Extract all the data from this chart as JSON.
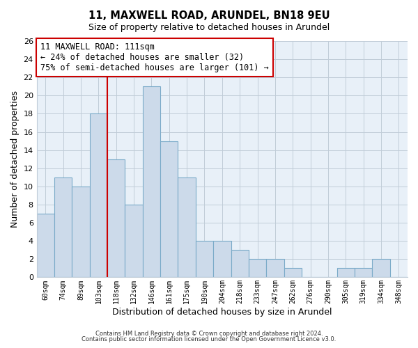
{
  "title": "11, MAXWELL ROAD, ARUNDEL, BN18 9EU",
  "subtitle": "Size of property relative to detached houses in Arundel",
  "xlabel": "Distribution of detached houses by size in Arundel",
  "ylabel": "Number of detached properties",
  "bar_labels": [
    "60sqm",
    "74sqm",
    "89sqm",
    "103sqm",
    "118sqm",
    "132sqm",
    "146sqm",
    "161sqm",
    "175sqm",
    "190sqm",
    "204sqm",
    "218sqm",
    "233sqm",
    "247sqm",
    "262sqm",
    "276sqm",
    "290sqm",
    "305sqm",
    "319sqm",
    "334sqm",
    "348sqm"
  ],
  "bar_values": [
    7,
    11,
    10,
    18,
    13,
    8,
    21,
    15,
    11,
    4,
    4,
    3,
    2,
    2,
    1,
    0,
    0,
    1,
    1,
    2,
    0
  ],
  "bar_color": "#ccdaea",
  "bar_edge_color": "#7aaac8",
  "vline_x": 3.5,
  "vline_color": "#cc0000",
  "annotation_text": "11 MAXWELL ROAD: 111sqm\n← 24% of detached houses are smaller (32)\n75% of semi-detached houses are larger (101) →",
  "annotation_box_color": "#ffffff",
  "annotation_box_edge": "#cc0000",
  "ylim": [
    0,
    26
  ],
  "yticks": [
    0,
    2,
    4,
    6,
    8,
    10,
    12,
    14,
    16,
    18,
    20,
    22,
    24,
    26
  ],
  "footnote1": "Contains HM Land Registry data © Crown copyright and database right 2024.",
  "footnote2": "Contains public sector information licensed under the Open Government Licence v3.0.",
  "plot_bg_color": "#e8f0f8",
  "fig_bg_color": "#ffffff",
  "grid_color": "#c0ccd8"
}
